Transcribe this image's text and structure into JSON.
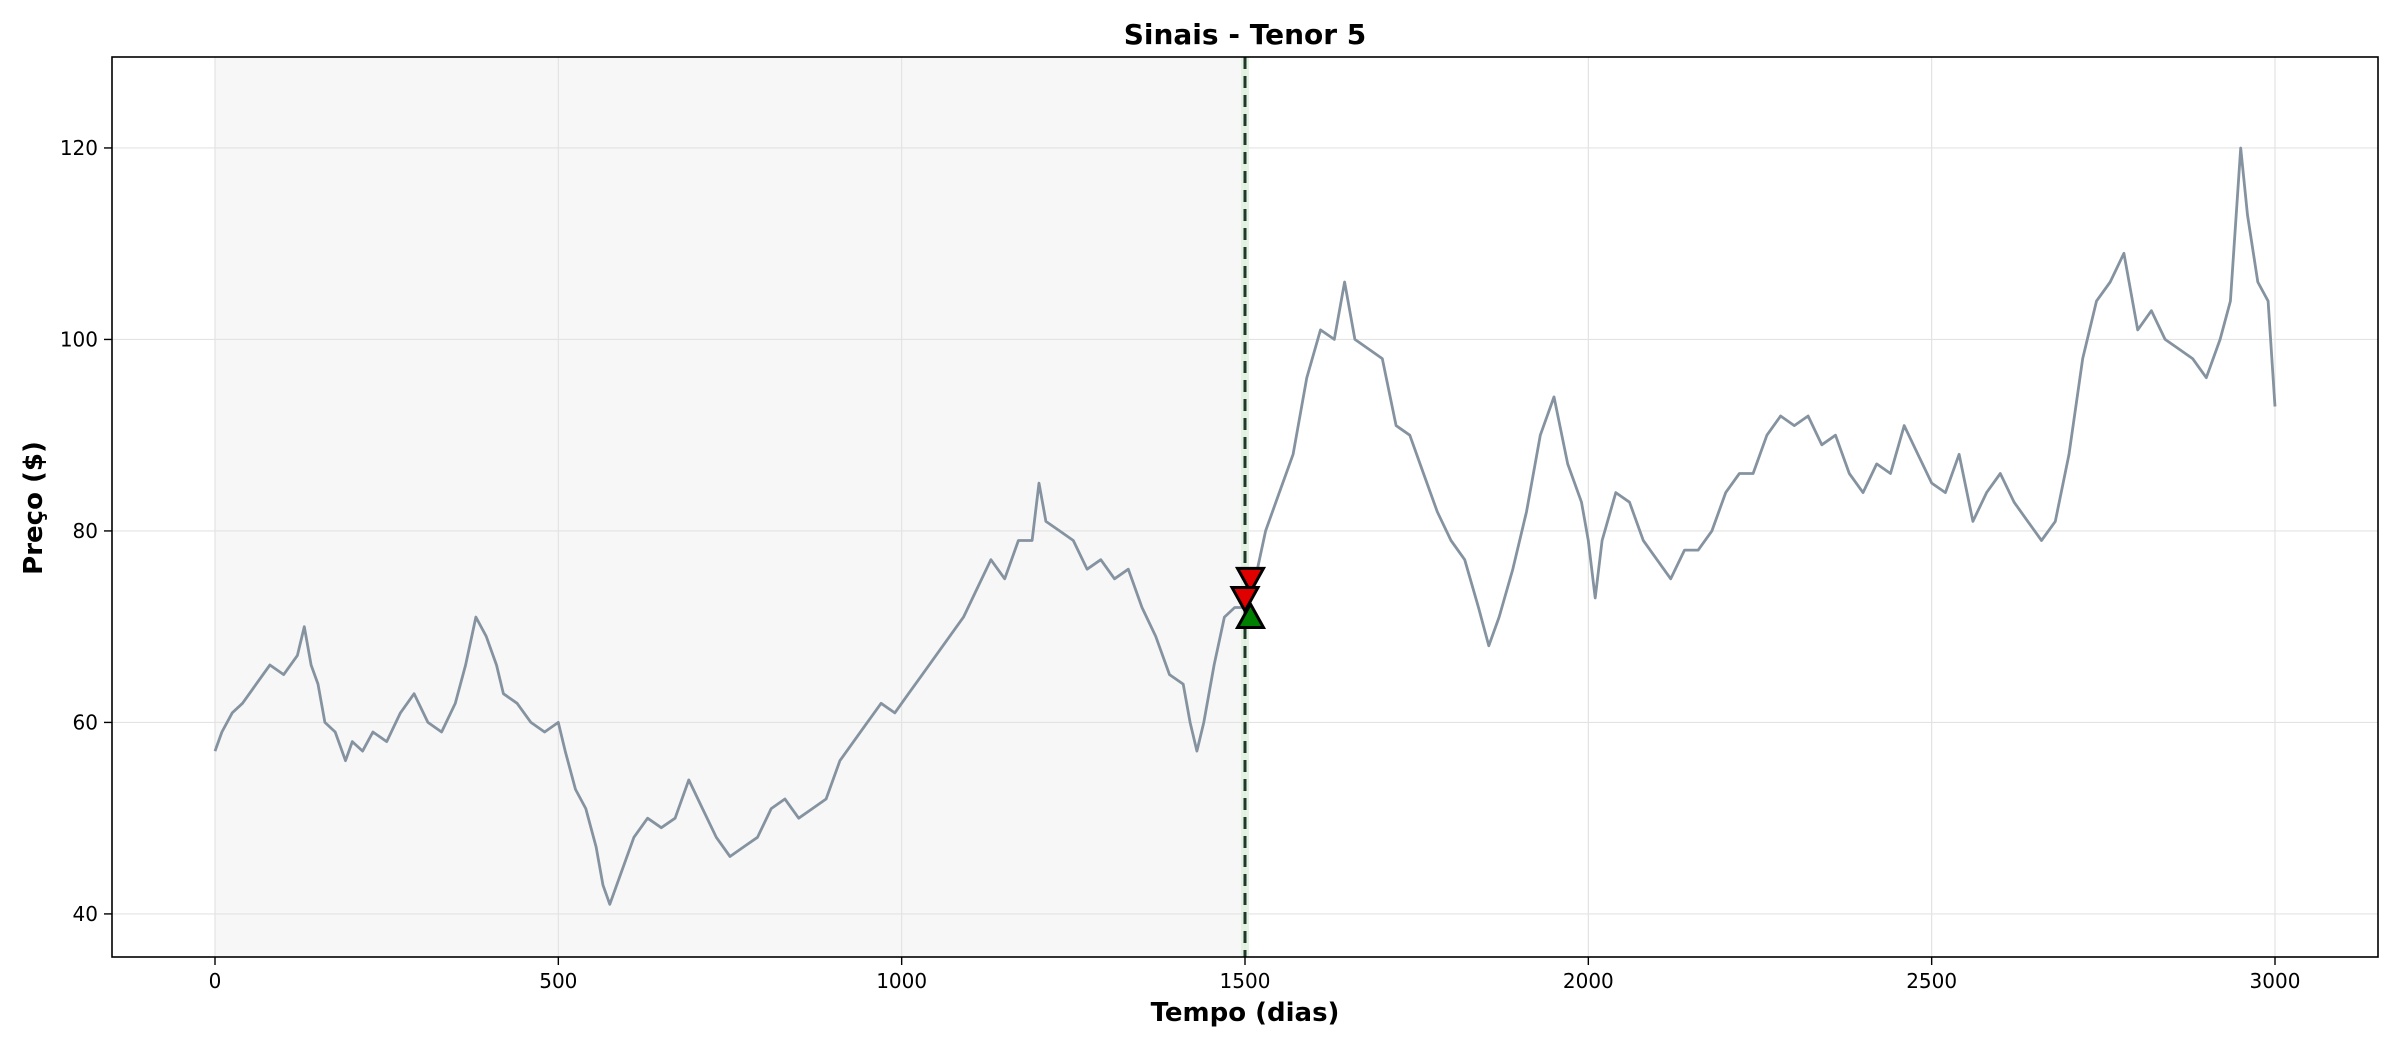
{
  "chart_data": {
    "type": "line",
    "title": "Sinais - Tenor 5",
    "xlabel": "Tempo (dias)",
    "ylabel": "Preço ($)",
    "xlim": [
      -150,
      3150
    ],
    "ylim": [
      35.5,
      129.5
    ],
    "xticks": [
      0,
      500,
      1000,
      1500,
      2000,
      2500,
      3000
    ],
    "yticks": [
      40,
      60,
      80,
      100,
      120
    ],
    "grid": true,
    "shaded_region": {
      "x_start": 0,
      "x_end": 1500,
      "color": "#f7f7f7"
    },
    "vline": {
      "x": 1500,
      "color": "#1f3a2a",
      "style": "dashed"
    },
    "series": [
      {
        "color": "#8593a0",
        "points": [
          [
            0,
            57
          ],
          [
            10,
            59
          ],
          [
            25,
            61
          ],
          [
            40,
            62
          ],
          [
            60,
            64
          ],
          [
            80,
            66
          ],
          [
            100,
            65
          ],
          [
            120,
            67
          ],
          [
            130,
            70
          ],
          [
            140,
            66
          ],
          [
            150,
            64
          ],
          [
            160,
            60
          ],
          [
            175,
            59
          ],
          [
            190,
            56
          ],
          [
            200,
            58
          ],
          [
            215,
            57
          ],
          [
            230,
            59
          ],
          [
            250,
            58
          ],
          [
            270,
            61
          ],
          [
            290,
            63
          ],
          [
            310,
            60
          ],
          [
            330,
            59
          ],
          [
            350,
            62
          ],
          [
            365,
            66
          ],
          [
            380,
            71
          ],
          [
            395,
            69
          ],
          [
            410,
            66
          ],
          [
            420,
            63
          ],
          [
            440,
            62
          ],
          [
            460,
            60
          ],
          [
            480,
            59
          ],
          [
            500,
            60
          ],
          [
            510,
            57
          ],
          [
            525,
            53
          ],
          [
            540,
            51
          ],
          [
            555,
            47
          ],
          [
            565,
            43
          ],
          [
            575,
            41
          ],
          [
            590,
            44
          ],
          [
            610,
            48
          ],
          [
            630,
            50
          ],
          [
            650,
            49
          ],
          [
            670,
            50
          ],
          [
            690,
            54
          ],
          [
            710,
            51
          ],
          [
            730,
            48
          ],
          [
            750,
            46
          ],
          [
            770,
            47
          ],
          [
            790,
            48
          ],
          [
            810,
            51
          ],
          [
            830,
            52
          ],
          [
            850,
            50
          ],
          [
            870,
            51
          ],
          [
            890,
            52
          ],
          [
            910,
            56
          ],
          [
            930,
            58
          ],
          [
            950,
            60
          ],
          [
            970,
            62
          ],
          [
            990,
            61
          ],
          [
            1010,
            63
          ],
          [
            1030,
            65
          ],
          [
            1050,
            67
          ],
          [
            1070,
            69
          ],
          [
            1090,
            71
          ],
          [
            1110,
            74
          ],
          [
            1130,
            77
          ],
          [
            1150,
            75
          ],
          [
            1170,
            79
          ],
          [
            1190,
            79
          ],
          [
            1200,
            85
          ],
          [
            1210,
            81
          ],
          [
            1230,
            80
          ],
          [
            1250,
            79
          ],
          [
            1270,
            76
          ],
          [
            1290,
            77
          ],
          [
            1310,
            75
          ],
          [
            1330,
            76
          ],
          [
            1350,
            72
          ],
          [
            1370,
            69
          ],
          [
            1390,
            65
          ],
          [
            1410,
            64
          ],
          [
            1420,
            60
          ],
          [
            1430,
            57
          ],
          [
            1440,
            60
          ],
          [
            1455,
            66
          ],
          [
            1470,
            71
          ],
          [
            1485,
            72
          ],
          [
            1500,
            72
          ],
          [
            1505,
            73
          ],
          [
            1515,
            75
          ],
          [
            1530,
            80
          ],
          [
            1550,
            84
          ],
          [
            1570,
            88
          ],
          [
            1590,
            96
          ],
          [
            1610,
            101
          ],
          [
            1630,
            100
          ],
          [
            1645,
            106
          ],
          [
            1660,
            100
          ],
          [
            1680,
            99
          ],
          [
            1700,
            98
          ],
          [
            1720,
            91
          ],
          [
            1740,
            90
          ],
          [
            1760,
            86
          ],
          [
            1780,
            82
          ],
          [
            1800,
            79
          ],
          [
            1820,
            77
          ],
          [
            1840,
            72
          ],
          [
            1855,
            68
          ],
          [
            1870,
            71
          ],
          [
            1890,
            76
          ],
          [
            1910,
            82
          ],
          [
            1930,
            90
          ],
          [
            1950,
            94
          ],
          [
            1970,
            87
          ],
          [
            1990,
            83
          ],
          [
            2000,
            79
          ],
          [
            2010,
            73
          ],
          [
            2020,
            79
          ],
          [
            2040,
            84
          ],
          [
            2060,
            83
          ],
          [
            2080,
            79
          ],
          [
            2100,
            77
          ],
          [
            2120,
            75
          ],
          [
            2140,
            78
          ],
          [
            2160,
            78
          ],
          [
            2180,
            80
          ],
          [
            2200,
            84
          ],
          [
            2220,
            86
          ],
          [
            2240,
            86
          ],
          [
            2260,
            90
          ],
          [
            2280,
            92
          ],
          [
            2300,
            91
          ],
          [
            2320,
            92
          ],
          [
            2340,
            89
          ],
          [
            2360,
            90
          ],
          [
            2380,
            86
          ],
          [
            2400,
            84
          ],
          [
            2420,
            87
          ],
          [
            2440,
            86
          ],
          [
            2460,
            91
          ],
          [
            2480,
            88
          ],
          [
            2500,
            85
          ],
          [
            2520,
            84
          ],
          [
            2540,
            88
          ],
          [
            2560,
            81
          ],
          [
            2580,
            84
          ],
          [
            2600,
            86
          ],
          [
            2620,
            83
          ],
          [
            2640,
            81
          ],
          [
            2660,
            79
          ],
          [
            2680,
            81
          ],
          [
            2700,
            88
          ],
          [
            2720,
            98
          ],
          [
            2740,
            104
          ],
          [
            2760,
            106
          ],
          [
            2780,
            109
          ],
          [
            2800,
            101
          ],
          [
            2820,
            103
          ],
          [
            2840,
            100
          ],
          [
            2860,
            99
          ],
          [
            2880,
            98
          ],
          [
            2900,
            96
          ],
          [
            2920,
            100
          ],
          [
            2935,
            104
          ],
          [
            2950,
            120
          ],
          [
            2960,
            113
          ],
          [
            2975,
            106
          ],
          [
            2990,
            104
          ],
          [
            3000,
            93
          ]
        ]
      }
    ],
    "markers": [
      {
        "type": "sell",
        "shape": "triangle-down",
        "x": 1508,
        "y": 75,
        "color": "#e00000"
      },
      {
        "type": "sell",
        "shape": "triangle-down",
        "x": 1500,
        "y": 73,
        "color": "#e00000"
      },
      {
        "type": "buy",
        "shape": "triangle-up",
        "x": 1508,
        "y": 71,
        "color": "#008000"
      }
    ]
  }
}
